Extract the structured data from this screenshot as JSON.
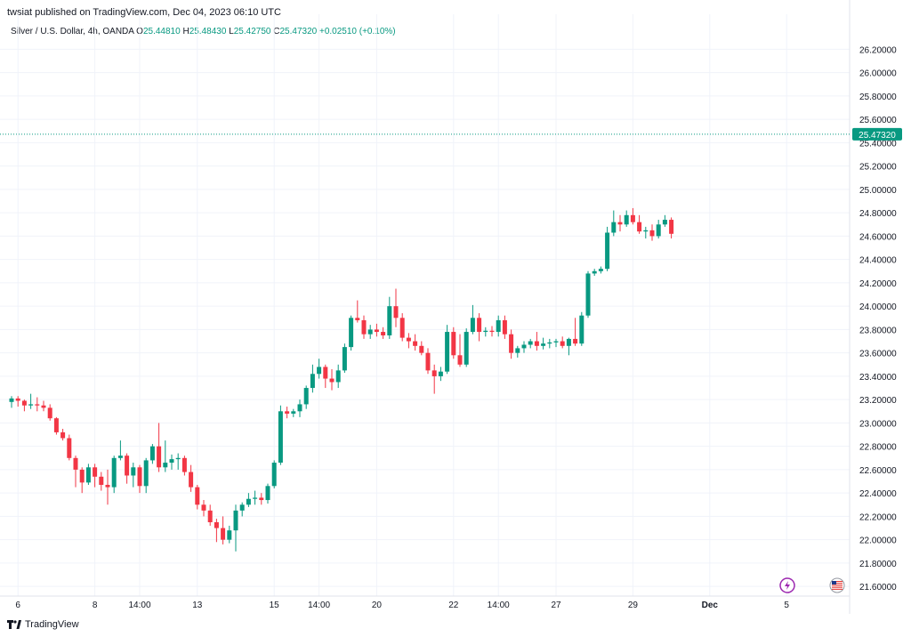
{
  "header": {
    "published": "twsiat published on TradingView.com, Dec 04, 2023 06:10 UTC"
  },
  "legend": {
    "symbol": "Silver / U.S. Dollar, 4h, OANDA",
    "o_label": "O",
    "o_value": "25.44810",
    "h_label": "H",
    "h_value": "25.48430",
    "l_label": "L",
    "l_value": "25.42750",
    "c_label": "C",
    "c_value": "25.47320",
    "change": "+0.02510 (+0.10%)"
  },
  "price_tag": "25.47320",
  "footer": {
    "brand": "TradingView"
  },
  "colors": {
    "up": "#089981",
    "down": "#f23645",
    "grid": "#f0f3fa",
    "text": "#131722",
    "event": "#9c27b0"
  },
  "event_icons": [
    "lightning-icon",
    "us-flag-icon"
  ],
  "chart_data": {
    "type": "candlestick",
    "ylim": [
      21.5,
      26.3
    ],
    "y_ticks": [
      "26.20000",
      "26.00000",
      "25.80000",
      "25.60000",
      "25.40000",
      "25.20000",
      "25.00000",
      "24.80000",
      "24.60000",
      "24.40000",
      "24.20000",
      "24.00000",
      "23.80000",
      "23.60000",
      "23.40000",
      "23.20000",
      "23.00000",
      "22.80000",
      "22.60000",
      "22.40000",
      "22.20000",
      "22.00000",
      "21.80000",
      "21.60000"
    ],
    "x_ticks": [
      {
        "label": "6",
        "bar": 1
      },
      {
        "label": "8",
        "bar": 13
      },
      {
        "label": "14:00",
        "bar": 20
      },
      {
        "label": "13",
        "bar": 29
      },
      {
        "label": "15",
        "bar": 41
      },
      {
        "label": "14:00",
        "bar": 48
      },
      {
        "label": "20",
        "bar": 57
      },
      {
        "label": "22",
        "bar": 69
      },
      {
        "label": "14:00",
        "bar": 76
      },
      {
        "label": "27",
        "bar": 85
      },
      {
        "label": "29",
        "bar": 97
      },
      {
        "label": "Dec",
        "bar": 109
      },
      {
        "label": "5",
        "bar": 121
      }
    ],
    "last_price": 25.4732,
    "candles": [
      [
        23.18,
        23.23,
        23.13,
        23.21
      ],
      [
        23.21,
        23.23,
        23.14,
        23.19
      ],
      [
        23.19,
        23.2,
        23.1,
        23.15
      ],
      [
        23.15,
        23.25,
        23.12,
        23.16
      ],
      [
        23.16,
        23.22,
        23.1,
        23.15
      ],
      [
        23.15,
        23.19,
        23.1,
        23.13
      ],
      [
        23.13,
        23.16,
        23.02,
        23.04
      ],
      [
        23.04,
        23.05,
        22.9,
        22.92
      ],
      [
        22.92,
        22.95,
        22.85,
        22.87
      ],
      [
        22.87,
        22.9,
        22.68,
        22.7
      ],
      [
        22.7,
        22.72,
        22.45,
        22.6
      ],
      [
        22.6,
        22.62,
        22.4,
        22.49
      ],
      [
        22.49,
        22.65,
        22.47,
        22.62
      ],
      [
        22.62,
        22.65,
        22.45,
        22.54
      ],
      [
        22.54,
        22.58,
        22.42,
        22.47
      ],
      [
        22.47,
        22.6,
        22.3,
        22.45
      ],
      [
        22.45,
        22.72,
        22.4,
        22.7
      ],
      [
        22.7,
        22.85,
        22.68,
        22.72
      ],
      [
        22.72,
        22.74,
        22.48,
        22.55
      ],
      [
        22.55,
        22.66,
        22.45,
        22.62
      ],
      [
        22.62,
        22.64,
        22.4,
        22.46
      ],
      [
        22.46,
        22.7,
        22.4,
        22.68
      ],
      [
        22.68,
        22.82,
        22.65,
        22.8
      ],
      [
        22.8,
        23.0,
        22.58,
        22.62
      ],
      [
        22.62,
        22.85,
        22.58,
        22.66
      ],
      [
        22.66,
        22.73,
        22.6,
        22.69
      ],
      [
        22.69,
        22.74,
        22.6,
        22.7
      ],
      [
        22.7,
        22.72,
        22.55,
        22.58
      ],
      [
        22.58,
        22.64,
        22.41,
        22.45
      ],
      [
        22.45,
        22.47,
        22.26,
        22.3
      ],
      [
        22.3,
        22.34,
        22.2,
        22.25
      ],
      [
        22.25,
        22.3,
        22.12,
        22.15
      ],
      [
        22.15,
        22.18,
        21.98,
        22.1
      ],
      [
        22.1,
        22.2,
        21.96,
        22.0
      ],
      [
        22.0,
        22.12,
        21.97,
        22.08
      ],
      [
        22.08,
        22.3,
        21.9,
        22.25
      ],
      [
        22.25,
        22.32,
        22.2,
        22.3
      ],
      [
        22.3,
        22.4,
        22.28,
        22.35
      ],
      [
        22.35,
        22.42,
        22.3,
        22.36
      ],
      [
        22.36,
        22.4,
        22.3,
        22.34
      ],
      [
        22.34,
        22.48,
        22.31,
        22.46
      ],
      [
        22.46,
        22.68,
        22.44,
        22.66
      ],
      [
        22.66,
        23.15,
        22.64,
        23.1
      ],
      [
        23.1,
        23.14,
        23.04,
        23.08
      ],
      [
        23.08,
        23.12,
        23.05,
        23.1
      ],
      [
        23.1,
        23.2,
        23.05,
        23.16
      ],
      [
        23.16,
        23.32,
        23.12,
        23.3
      ],
      [
        23.3,
        23.5,
        23.26,
        23.42
      ],
      [
        23.42,
        23.55,
        23.38,
        23.48
      ],
      [
        23.48,
        23.5,
        23.3,
        23.38
      ],
      [
        23.38,
        23.46,
        23.28,
        23.35
      ],
      [
        23.35,
        23.5,
        23.3,
        23.45
      ],
      [
        23.45,
        23.68,
        23.43,
        23.65
      ],
      [
        23.65,
        23.92,
        23.62,
        23.9
      ],
      [
        23.9,
        24.05,
        23.86,
        23.88
      ],
      [
        23.88,
        23.92,
        23.72,
        23.76
      ],
      [
        23.76,
        23.84,
        23.72,
        23.8
      ],
      [
        23.8,
        23.85,
        23.74,
        23.78
      ],
      [
        23.78,
        23.82,
        23.72,
        23.75
      ],
      [
        23.75,
        24.08,
        23.72,
        24.0
      ],
      [
        24.0,
        24.15,
        23.82,
        23.9
      ],
      [
        23.9,
        23.94,
        23.7,
        23.73
      ],
      [
        23.73,
        23.77,
        23.64,
        23.7
      ],
      [
        23.7,
        23.76,
        23.62,
        23.66
      ],
      [
        23.66,
        23.7,
        23.58,
        23.6
      ],
      [
        23.6,
        23.64,
        23.42,
        23.45
      ],
      [
        23.45,
        23.5,
        23.25,
        23.4
      ],
      [
        23.4,
        23.48,
        23.36,
        23.44
      ],
      [
        23.44,
        23.84,
        23.42,
        23.78
      ],
      [
        23.78,
        23.82,
        23.55,
        23.58
      ],
      [
        23.58,
        23.76,
        23.48,
        23.5
      ],
      [
        23.5,
        23.81,
        23.48,
        23.78
      ],
      [
        23.78,
        24.01,
        23.76,
        23.9
      ],
      [
        23.9,
        23.94,
        23.7,
        23.78
      ],
      [
        23.78,
        23.82,
        23.74,
        23.79
      ],
      [
        23.79,
        23.83,
        23.74,
        23.78
      ],
      [
        23.78,
        23.92,
        23.74,
        23.88
      ],
      [
        23.88,
        23.92,
        23.72,
        23.76
      ],
      [
        23.76,
        23.8,
        23.55,
        23.6
      ],
      [
        23.6,
        23.66,
        23.56,
        23.64
      ],
      [
        23.64,
        23.7,
        23.6,
        23.67
      ],
      [
        23.67,
        23.72,
        23.64,
        23.7
      ],
      [
        23.7,
        23.78,
        23.62,
        23.66
      ],
      [
        23.66,
        23.73,
        23.63,
        23.68
      ],
      [
        23.68,
        23.72,
        23.64,
        23.69
      ],
      [
        23.69,
        23.72,
        23.65,
        23.7
      ],
      [
        23.7,
        23.74,
        23.64,
        23.66
      ],
      [
        23.66,
        23.73,
        23.58,
        23.72
      ],
      [
        23.72,
        23.9,
        23.66,
        23.68
      ],
      [
        23.68,
        23.95,
        23.66,
        23.92
      ],
      [
        23.92,
        24.3,
        23.9,
        24.28
      ],
      [
        24.28,
        24.32,
        24.26,
        24.3
      ],
      [
        24.3,
        24.34,
        24.28,
        24.32
      ],
      [
        24.32,
        24.68,
        24.3,
        24.63
      ],
      [
        24.63,
        24.82,
        24.6,
        24.72
      ],
      [
        24.72,
        24.78,
        24.64,
        24.7
      ],
      [
        24.7,
        24.82,
        24.68,
        24.78
      ],
      [
        24.78,
        24.84,
        24.7,
        24.72
      ],
      [
        24.72,
        24.78,
        24.62,
        24.64
      ],
      [
        24.64,
        24.68,
        24.58,
        24.65
      ],
      [
        24.65,
        24.7,
        24.56,
        24.6
      ],
      [
        24.6,
        24.74,
        24.58,
        24.7
      ],
      [
        24.7,
        24.78,
        24.68,
        24.74
      ],
      [
        24.74,
        24.76,
        24.58,
        24.62
      ]
    ]
  }
}
